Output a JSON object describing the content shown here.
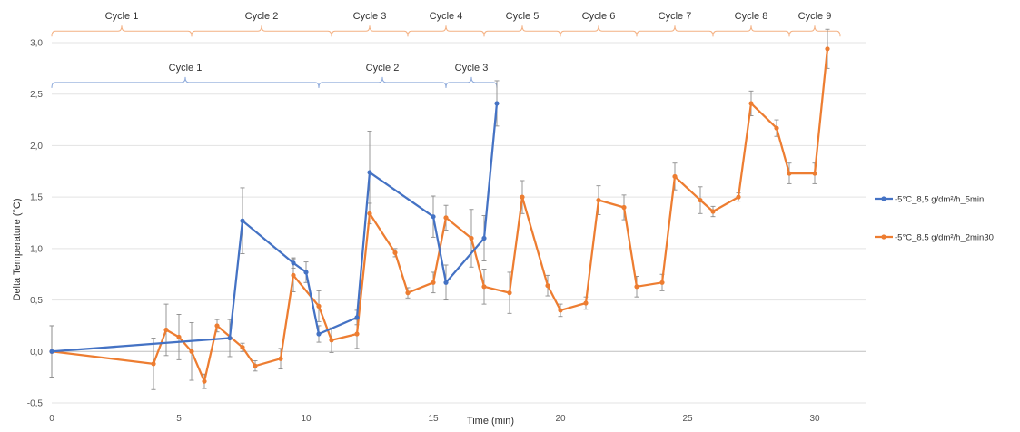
{
  "chart_data": {
    "type": "line",
    "xlabel": "Time (min)",
    "ylabel": "Delta Temperature (°C)",
    "xlim": [
      0,
      32
    ],
    "ylim": [
      -0.5,
      3.0
    ],
    "x_ticks": [
      0,
      5,
      10,
      15,
      20,
      25,
      30
    ],
    "x_tick_labels": [
      "0",
      "5",
      "10",
      "15",
      "20",
      "25",
      "30"
    ],
    "y_ticks": [
      -0.5,
      0.0,
      0.5,
      1.0,
      1.5,
      2.0,
      2.5,
      3.0
    ],
    "y_tick_labels": [
      "-0,5",
      "0,0",
      "0,5",
      "1,0",
      "1,5",
      "2,0",
      "2,5",
      "3,0"
    ],
    "grid": "horizontal",
    "legend_position": "right",
    "series": [
      {
        "name": "-5°C_8,5 g/dm²/h_5min",
        "color": "#4472c4",
        "x": [
          0,
          7,
          7.5,
          9.5,
          10,
          10.5,
          12,
          12.5,
          15,
          15.5,
          17,
          17.5
        ],
        "y": [
          0,
          0.13,
          1.27,
          0.86,
          0.77,
          0.17,
          0.33,
          1.74,
          1.31,
          0.67,
          1.1,
          2.41
        ],
        "err": [
          0.25,
          0.18,
          0.32,
          0.05,
          0.1,
          0.08,
          0.07,
          0.4,
          0.2,
          0.17,
          0.22,
          0.22
        ]
      },
      {
        "name": "-5°C_8,5 g/dm²/h_2min30",
        "color": "#ed7d31",
        "x": [
          0,
          4,
          4.5,
          5,
          5.5,
          6,
          6.5,
          7.5,
          8,
          9,
          9.5,
          10.5,
          11,
          12,
          12.5,
          13.5,
          14,
          15,
          15.5,
          16.5,
          17,
          18,
          18.5,
          19.5,
          20,
          21,
          21.5,
          22.5,
          23,
          24,
          24.5,
          25.5,
          26,
          27,
          27.5,
          28.5,
          29,
          30,
          30.5
        ],
        "y": [
          0,
          -0.12,
          0.21,
          0.14,
          0.0,
          -0.29,
          0.25,
          0.04,
          -0.14,
          -0.07,
          0.74,
          0.44,
          0.11,
          0.17,
          1.34,
          0.96,
          0.57,
          0.67,
          1.3,
          1.1,
          0.63,
          0.57,
          1.5,
          0.64,
          0.4,
          0.47,
          1.47,
          1.4,
          0.63,
          0.67,
          1.7,
          1.47,
          1.36,
          1.5,
          2.41,
          2.17,
          1.73,
          1.73,
          2.94
        ],
        "err": [
          0.25,
          0.25,
          0.25,
          0.22,
          0.28,
          0.07,
          0.06,
          0.04,
          0.05,
          0.1,
          0.16,
          0.15,
          0.12,
          0.14,
          0.1,
          0.04,
          0.05,
          0.1,
          0.12,
          0.28,
          0.17,
          0.2,
          0.16,
          0.1,
          0.06,
          0.06,
          0.14,
          0.12,
          0.1,
          0.08,
          0.13,
          0.13,
          0.05,
          0.04,
          0.12,
          0.08,
          0.1,
          0.1,
          0.19
        ]
      }
    ],
    "cycle_brackets": [
      {
        "series": "-5°C_8,5 g/dm²/h_2min30",
        "color": "#f4b183",
        "y": 3.06,
        "cycles": [
          {
            "label": "Cycle 1",
            "x_start": 0,
            "x_end": 5.5
          },
          {
            "label": "Cycle 2",
            "x_start": 5.5,
            "x_end": 11
          },
          {
            "label": "Cycle 3",
            "x_start": 11,
            "x_end": 14
          },
          {
            "label": "Cycle 4",
            "x_start": 14,
            "x_end": 17
          },
          {
            "label": "Cycle 5",
            "x_start": 17,
            "x_end": 20
          },
          {
            "label": "Cycle 6",
            "x_start": 20,
            "x_end": 23
          },
          {
            "label": "Cycle 7",
            "x_start": 23,
            "x_end": 26
          },
          {
            "label": "Cycle 8",
            "x_start": 26,
            "x_end": 29
          },
          {
            "label": "Cycle 9",
            "x_start": 29,
            "x_end": 31
          }
        ]
      },
      {
        "series": "-5°C_8,5 g/dm²/h_5min",
        "color": "#8eaadb",
        "y": 2.56,
        "cycles": [
          {
            "label": "Cycle 1",
            "x_start": 0,
            "x_end": 10.5
          },
          {
            "label": "Cycle 2",
            "x_start": 10.5,
            "x_end": 15.5
          },
          {
            "label": "Cycle 3",
            "x_start": 15.5,
            "x_end": 17.5
          }
        ]
      }
    ]
  }
}
